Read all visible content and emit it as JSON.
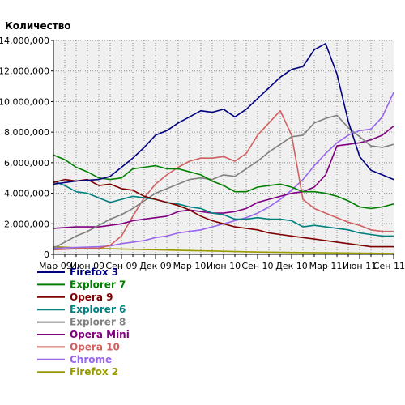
{
  "chart_data": {
    "type": "line",
    "title": "",
    "ylabel": "Количество",
    "xlabel": "",
    "ylim": [
      0,
      14000000
    ],
    "xlim": [
      "2009-03",
      "2011-09"
    ],
    "grid": true,
    "legend": "bottom",
    "yticks": [
      0,
      2000000,
      4000000,
      6000000,
      8000000,
      10000000,
      12000000,
      14000000
    ],
    "ytick_labels": [
      "0",
      "2,000,000",
      "4,000,000",
      "6,000,000",
      "8,000,000",
      "10,000,000",
      "12,000,000",
      "14,000,000"
    ],
    "xticks": [
      "2009-03",
      "2009-06",
      "2009-09",
      "2009-12",
      "2010-03",
      "2010-06",
      "2010-09",
      "2010-12",
      "2011-03",
      "2011-06",
      "2011-09"
    ],
    "xtick_labels": [
      "Мар 09",
      "Июн 09",
      "Сен 09",
      "Дек 09",
      "Мар 10",
      "Июн 10",
      "Сен 10",
      "Дек 10",
      "Мар 11",
      "Июн 11",
      "Сен 11"
    ],
    "series": [
      {
        "name": "Firefox 3",
        "color": "#000080",
        "points": [
          [
            "2009-03",
            4600000
          ],
          [
            "2009-05",
            4800000
          ],
          [
            "2009-07",
            4900000
          ],
          [
            "2009-08",
            5100000
          ],
          [
            "2009-09",
            5700000
          ],
          [
            "2009-10",
            6300000
          ],
          [
            "2009-11",
            7000000
          ],
          [
            "2009-12",
            7800000
          ],
          [
            "2010-01",
            8100000
          ],
          [
            "2010-02",
            8600000
          ],
          [
            "2010-03",
            9000000
          ],
          [
            "2010-04",
            9400000
          ],
          [
            "2010-05",
            9300000
          ],
          [
            "2010-06",
            9500000
          ],
          [
            "2010-07",
            9000000
          ],
          [
            "2010-08",
            9500000
          ],
          [
            "2010-09",
            10200000
          ],
          [
            "2010-10",
            10900000
          ],
          [
            "2010-11",
            11600000
          ],
          [
            "2010-12",
            12100000
          ],
          [
            "2011-01",
            12300000
          ],
          [
            "2011-02",
            13400000
          ],
          [
            "2011-03",
            13800000
          ],
          [
            "2011-04",
            11800000
          ],
          [
            "2011-05",
            8700000
          ],
          [
            "2011-06",
            6400000
          ],
          [
            "2011-07",
            5500000
          ],
          [
            "2011-08",
            5200000
          ],
          [
            "2011-09",
            4900000
          ]
        ]
      },
      {
        "name": "Explorer 7",
        "color": "#008000",
        "points": [
          [
            "2009-03",
            6500000
          ],
          [
            "2009-04",
            6200000
          ],
          [
            "2009-05",
            5700000
          ],
          [
            "2009-06",
            5400000
          ],
          [
            "2009-07",
            5000000
          ],
          [
            "2009-08",
            4900000
          ],
          [
            "2009-09",
            5000000
          ],
          [
            "2009-10",
            5600000
          ],
          [
            "2009-11",
            5700000
          ],
          [
            "2009-12",
            5800000
          ],
          [
            "2010-01",
            5600000
          ],
          [
            "2010-02",
            5600000
          ],
          [
            "2010-03",
            5400000
          ],
          [
            "2010-04",
            5200000
          ],
          [
            "2010-05",
            4800000
          ],
          [
            "2010-06",
            4500000
          ],
          [
            "2010-07",
            4100000
          ],
          [
            "2010-08",
            4100000
          ],
          [
            "2010-09",
            4400000
          ],
          [
            "2010-10",
            4500000
          ],
          [
            "2010-11",
            4600000
          ],
          [
            "2010-12",
            4400000
          ],
          [
            "2011-01",
            4100000
          ],
          [
            "2011-02",
            4100000
          ],
          [
            "2011-03",
            4000000
          ],
          [
            "2011-04",
            3800000
          ],
          [
            "2011-05",
            3500000
          ],
          [
            "2011-06",
            3100000
          ],
          [
            "2011-07",
            3000000
          ],
          [
            "2011-08",
            3100000
          ],
          [
            "2011-09",
            3300000
          ]
        ]
      },
      {
        "name": "Opera 9",
        "color": "#800000",
        "points": [
          [
            "2009-03",
            4700000
          ],
          [
            "2009-04",
            4900000
          ],
          [
            "2009-05",
            4800000
          ],
          [
            "2009-06",
            4900000
          ],
          [
            "2009-07",
            4500000
          ],
          [
            "2009-08",
            4600000
          ],
          [
            "2009-09",
            4300000
          ],
          [
            "2009-10",
            4200000
          ],
          [
            "2009-11",
            3800000
          ],
          [
            "2009-12",
            3600000
          ],
          [
            "2010-01",
            3400000
          ],
          [
            "2010-02",
            3200000
          ],
          [
            "2010-03",
            2900000
          ],
          [
            "2010-04",
            2500000
          ],
          [
            "2010-05",
            2200000
          ],
          [
            "2010-06",
            2000000
          ],
          [
            "2010-07",
            1800000
          ],
          [
            "2010-08",
            1700000
          ],
          [
            "2010-09",
            1600000
          ],
          [
            "2010-10",
            1400000
          ],
          [
            "2010-11",
            1300000
          ],
          [
            "2010-12",
            1200000
          ],
          [
            "2011-01",
            1100000
          ],
          [
            "2011-02",
            1000000
          ],
          [
            "2011-03",
            900000
          ],
          [
            "2011-04",
            800000
          ],
          [
            "2011-05",
            700000
          ],
          [
            "2011-06",
            600000
          ],
          [
            "2011-07",
            500000
          ],
          [
            "2011-08",
            500000
          ],
          [
            "2011-09",
            500000
          ]
        ]
      },
      {
        "name": "Explorer 6",
        "color": "#008080",
        "points": [
          [
            "2009-03",
            4800000
          ],
          [
            "2009-04",
            4500000
          ],
          [
            "2009-05",
            4100000
          ],
          [
            "2009-06",
            4000000
          ],
          [
            "2009-07",
            3700000
          ],
          [
            "2009-08",
            3400000
          ],
          [
            "2009-09",
            3600000
          ],
          [
            "2009-10",
            3800000
          ],
          [
            "2009-11",
            3700000
          ],
          [
            "2009-12",
            3600000
          ],
          [
            "2010-01",
            3400000
          ],
          [
            "2010-02",
            3300000
          ],
          [
            "2010-03",
            3100000
          ],
          [
            "2010-04",
            3000000
          ],
          [
            "2010-05",
            2700000
          ],
          [
            "2010-06",
            2600000
          ],
          [
            "2010-07",
            2300000
          ],
          [
            "2010-08",
            2300000
          ],
          [
            "2010-09",
            2400000
          ],
          [
            "2010-10",
            2300000
          ],
          [
            "2010-11",
            2300000
          ],
          [
            "2010-12",
            2200000
          ],
          [
            "2011-01",
            1800000
          ],
          [
            "2011-02",
            1900000
          ],
          [
            "2011-03",
            1800000
          ],
          [
            "2011-04",
            1700000
          ],
          [
            "2011-05",
            1600000
          ],
          [
            "2011-06",
            1400000
          ],
          [
            "2011-07",
            1300000
          ],
          [
            "2011-08",
            1200000
          ],
          [
            "2011-09",
            1200000
          ]
        ]
      },
      {
        "name": "Explorer 8",
        "color": "#808080",
        "points": [
          [
            "2009-03",
            400000
          ],
          [
            "2009-04",
            800000
          ],
          [
            "2009-05",
            1200000
          ],
          [
            "2009-06",
            1500000
          ],
          [
            "2009-07",
            1900000
          ],
          [
            "2009-08",
            2300000
          ],
          [
            "2009-09",
            2600000
          ],
          [
            "2009-10",
            3000000
          ],
          [
            "2009-11",
            3500000
          ],
          [
            "2009-12",
            4000000
          ],
          [
            "2010-01",
            4300000
          ],
          [
            "2010-02",
            4600000
          ],
          [
            "2010-03",
            4900000
          ],
          [
            "2010-04",
            5000000
          ],
          [
            "2010-05",
            4900000
          ],
          [
            "2010-06",
            5200000
          ],
          [
            "2010-07",
            5100000
          ],
          [
            "2010-08",
            5600000
          ],
          [
            "2010-09",
            6100000
          ],
          [
            "2010-10",
            6700000
          ],
          [
            "2010-11",
            7200000
          ],
          [
            "2010-12",
            7700000
          ],
          [
            "2011-01",
            7800000
          ],
          [
            "2011-02",
            8600000
          ],
          [
            "2011-03",
            8900000
          ],
          [
            "2011-04",
            9100000
          ],
          [
            "2011-05",
            8300000
          ],
          [
            "2011-06",
            7700000
          ],
          [
            "2011-07",
            7100000
          ],
          [
            "2011-08",
            7000000
          ],
          [
            "2011-09",
            7200000
          ]
        ]
      },
      {
        "name": "Opera Mini",
        "color": "#800080",
        "points": [
          [
            "2009-03",
            1700000
          ],
          [
            "2009-05",
            1800000
          ],
          [
            "2009-07",
            1800000
          ],
          [
            "2009-08",
            1900000
          ],
          [
            "2009-09",
            2000000
          ],
          [
            "2009-10",
            2200000
          ],
          [
            "2009-11",
            2300000
          ],
          [
            "2009-12",
            2400000
          ],
          [
            "2010-01",
            2500000
          ],
          [
            "2010-02",
            2800000
          ],
          [
            "2010-03",
            2900000
          ],
          [
            "2010-04",
            2800000
          ],
          [
            "2010-05",
            2700000
          ],
          [
            "2010-06",
            2700000
          ],
          [
            "2010-07",
            2800000
          ],
          [
            "2010-08",
            3000000
          ],
          [
            "2010-09",
            3400000
          ],
          [
            "2010-10",
            3600000
          ],
          [
            "2010-11",
            3800000
          ],
          [
            "2010-12",
            4000000
          ],
          [
            "2011-01",
            4100000
          ],
          [
            "2011-02",
            4400000
          ],
          [
            "2011-03",
            5200000
          ],
          [
            "2011-04",
            7100000
          ],
          [
            "2011-05",
            7200000
          ],
          [
            "2011-06",
            7300000
          ],
          [
            "2011-07",
            7500000
          ],
          [
            "2011-08",
            7800000
          ],
          [
            "2011-09",
            8400000
          ]
        ]
      },
      {
        "name": "Opera 10",
        "color": "#d06060",
        "points": [
          [
            "2009-03",
            300000
          ],
          [
            "2009-06",
            400000
          ],
          [
            "2009-07",
            400000
          ],
          [
            "2009-08",
            600000
          ],
          [
            "2009-09",
            1200000
          ],
          [
            "2009-10",
            2500000
          ],
          [
            "2009-11",
            3700000
          ],
          [
            "2009-12",
            4600000
          ],
          [
            "2010-01",
            5200000
          ],
          [
            "2010-02",
            5700000
          ],
          [
            "2010-03",
            6100000
          ],
          [
            "2010-04",
            6300000
          ],
          [
            "2010-05",
            6300000
          ],
          [
            "2010-06",
            6400000
          ],
          [
            "2010-07",
            6100000
          ],
          [
            "2010-08",
            6600000
          ],
          [
            "2010-09",
            7800000
          ],
          [
            "2010-10",
            8600000
          ],
          [
            "2010-11",
            9400000
          ],
          [
            "2010-12",
            7800000
          ],
          [
            "2011-01",
            3600000
          ],
          [
            "2011-02",
            3000000
          ],
          [
            "2011-03",
            2700000
          ],
          [
            "2011-04",
            2400000
          ],
          [
            "2011-05",
            2100000
          ],
          [
            "2011-06",
            1900000
          ],
          [
            "2011-07",
            1600000
          ],
          [
            "2011-08",
            1500000
          ],
          [
            "2011-09",
            1500000
          ]
        ]
      },
      {
        "name": "Chrome",
        "color": "#9966ee",
        "points": [
          [
            "2009-03",
            400000
          ],
          [
            "2009-05",
            450000
          ],
          [
            "2009-07",
            500000
          ],
          [
            "2009-08",
            550000
          ],
          [
            "2009-09",
            700000
          ],
          [
            "2009-10",
            800000
          ],
          [
            "2009-11",
            900000
          ],
          [
            "2009-12",
            1100000
          ],
          [
            "2010-01",
            1200000
          ],
          [
            "2010-02",
            1400000
          ],
          [
            "2010-03",
            1500000
          ],
          [
            "2010-04",
            1600000
          ],
          [
            "2010-05",
            1800000
          ],
          [
            "2010-06",
            2000000
          ],
          [
            "2010-07",
            2200000
          ],
          [
            "2010-08",
            2400000
          ],
          [
            "2010-09",
            2700000
          ],
          [
            "2010-10",
            3100000
          ],
          [
            "2010-11",
            3600000
          ],
          [
            "2010-12",
            4200000
          ],
          [
            "2011-01",
            4900000
          ],
          [
            "2011-02",
            5800000
          ],
          [
            "2011-03",
            6600000
          ],
          [
            "2011-04",
            7300000
          ],
          [
            "2011-05",
            7800000
          ],
          [
            "2011-06",
            8100000
          ],
          [
            "2011-07",
            8200000
          ],
          [
            "2011-08",
            9000000
          ],
          [
            "2011-09",
            10600000
          ]
        ]
      },
      {
        "name": "Firefox 2",
        "color": "#999900",
        "points": [
          [
            "2009-03",
            500000
          ],
          [
            "2009-06",
            400000
          ],
          [
            "2009-09",
            350000
          ],
          [
            "2009-12",
            300000
          ],
          [
            "2010-03",
            250000
          ],
          [
            "2010-06",
            200000
          ],
          [
            "2010-09",
            150000
          ],
          [
            "2010-12",
            120000
          ],
          [
            "2011-03",
            100000
          ],
          [
            "2011-06",
            80000
          ],
          [
            "2011-09",
            60000
          ]
        ]
      }
    ]
  }
}
